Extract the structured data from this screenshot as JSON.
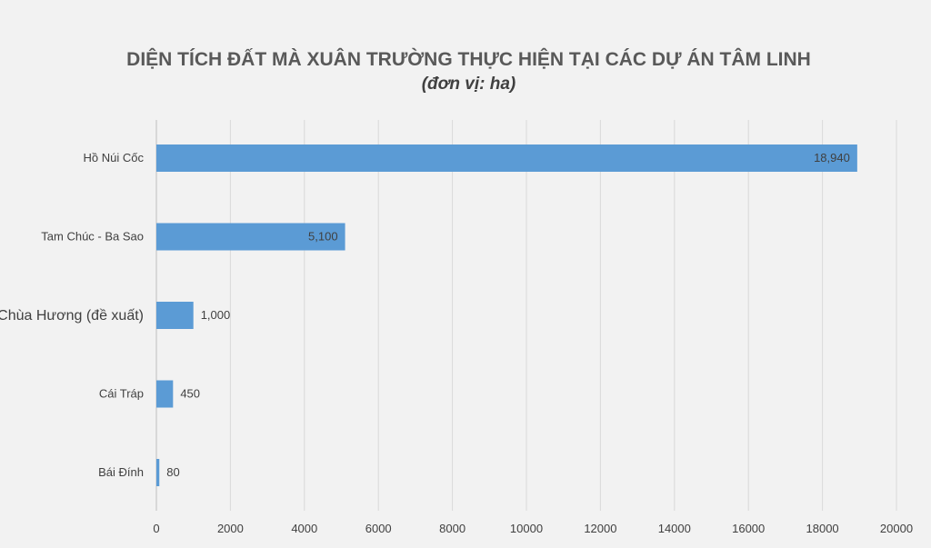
{
  "chart_data": {
    "type": "bar",
    "orientation": "horizontal",
    "title": "DIỆN TÍCH ĐẤT MÀ XUÂN TRƯỜNG THỰC HIỆN TẠI CÁC DỰ ÁN TÂM LINH",
    "subtitle": "(đơn vị: ha)",
    "categories": [
      "Hồ Núi Cốc",
      "Tam Chúc - Ba Sao",
      "Chùa Hương (đề xuất)",
      "Cái Tráp",
      "Bái Đính"
    ],
    "values": [
      18940,
      5100,
      1000,
      450,
      80
    ],
    "data_labels": [
      "18,940",
      "5,100",
      "1,000",
      "450",
      "80"
    ],
    "xlim": [
      0,
      20000
    ],
    "xticks": [
      0,
      2000,
      4000,
      6000,
      8000,
      10000,
      12000,
      14000,
      16000,
      18000,
      20000
    ],
    "grid": "vertical",
    "legend": "none",
    "bar_color": "#5b9bd5"
  }
}
